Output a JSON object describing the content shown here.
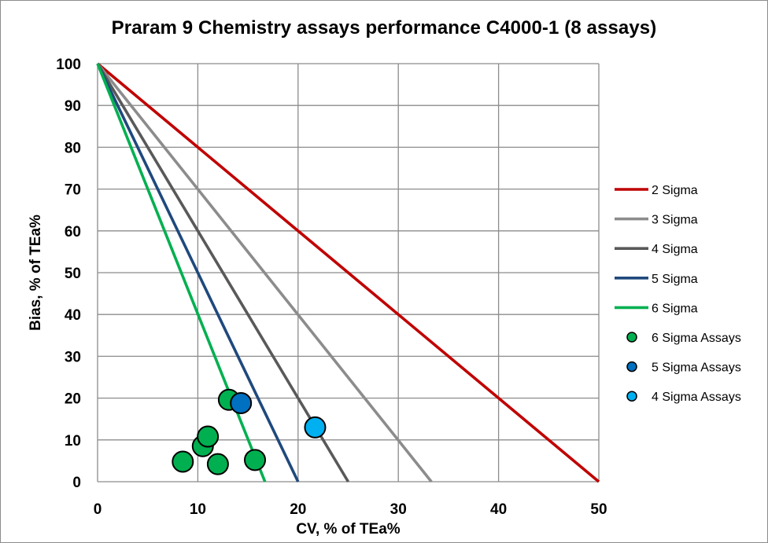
{
  "chart_data": {
    "type": "scatter",
    "title": "Praram 9 Chemistry assays performance C4000-1 (8 assays)",
    "xlabel": "CV, % of TEa%",
    "ylabel": "Bias, % of TEa%",
    "xlim": [
      0,
      50
    ],
    "ylim": [
      0,
      100
    ],
    "x_ticks": [
      0,
      10,
      20,
      30,
      40,
      50
    ],
    "y_ticks": [
      0,
      10,
      20,
      30,
      40,
      50,
      60,
      70,
      80,
      90,
      100
    ],
    "grid": true,
    "legend_position": "right",
    "sigma_lines": [
      {
        "name": "2 Sigma",
        "color": "#c00000",
        "x_intercept": 50,
        "y_intercept": 100
      },
      {
        "name": "3 Sigma",
        "color": "#8c8c8c",
        "x_intercept": 33.3,
        "y_intercept": 100
      },
      {
        "name": "4 Sigma",
        "color": "#595959",
        "x_intercept": 25,
        "y_intercept": 100
      },
      {
        "name": "5 Sigma",
        "color": "#1f497d",
        "x_intercept": 20,
        "y_intercept": 100
      },
      {
        "name": "6 Sigma",
        "color": "#00b050",
        "x_intercept": 16.7,
        "y_intercept": 100
      }
    ],
    "series": [
      {
        "name": "6 Sigma Assays",
        "color": "#00b050",
        "points": [
          [
            8.5,
            4.8
          ],
          [
            10.5,
            8.5
          ],
          [
            11.0,
            10.8
          ],
          [
            12.0,
            4.2
          ],
          [
            13.1,
            19.6
          ],
          [
            15.7,
            5.2
          ]
        ]
      },
      {
        "name": "5 Sigma Assays",
        "color": "#0070c0",
        "points": [
          [
            14.3,
            18.8
          ]
        ]
      },
      {
        "name": "4 Sigma Assays",
        "color": "#00b0f0",
        "points": [
          [
            21.7,
            13.0
          ]
        ]
      }
    ]
  }
}
